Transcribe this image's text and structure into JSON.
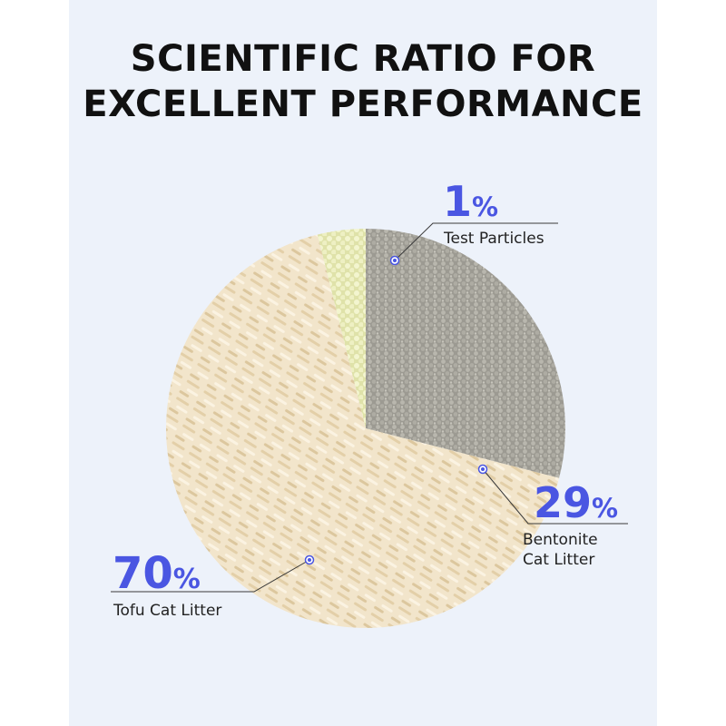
{
  "title_lines": [
    "SCIENTIFIC RATIO FOR",
    "EXCELLENT PERFORMANCE"
  ],
  "colors": {
    "background": "#edf2fa",
    "accent_blue": "#4a56e2",
    "tofu": "#f1e3c8",
    "bentonite": "#a9a79f",
    "test_particles": "#eef0c2"
  },
  "chart_data": {
    "type": "pie",
    "title": "SCIENTIFIC RATIO FOR EXCELLENT PERFORMANCE",
    "categories": [
      "Test Particles",
      "Bentonite Cat Litter",
      "Tofu Cat Litter"
    ],
    "values": [
      1,
      29,
      70
    ],
    "unit": "%",
    "labels": [
      {
        "value": "1",
        "unit": "%",
        "lines": [
          "Test Particles"
        ]
      },
      {
        "value": "29",
        "unit": "%",
        "lines": [
          "Bentonite",
          "Cat Litter"
        ]
      },
      {
        "value": "70",
        "unit": "%",
        "lines": [
          "Tofu Cat Litter"
        ]
      }
    ]
  }
}
